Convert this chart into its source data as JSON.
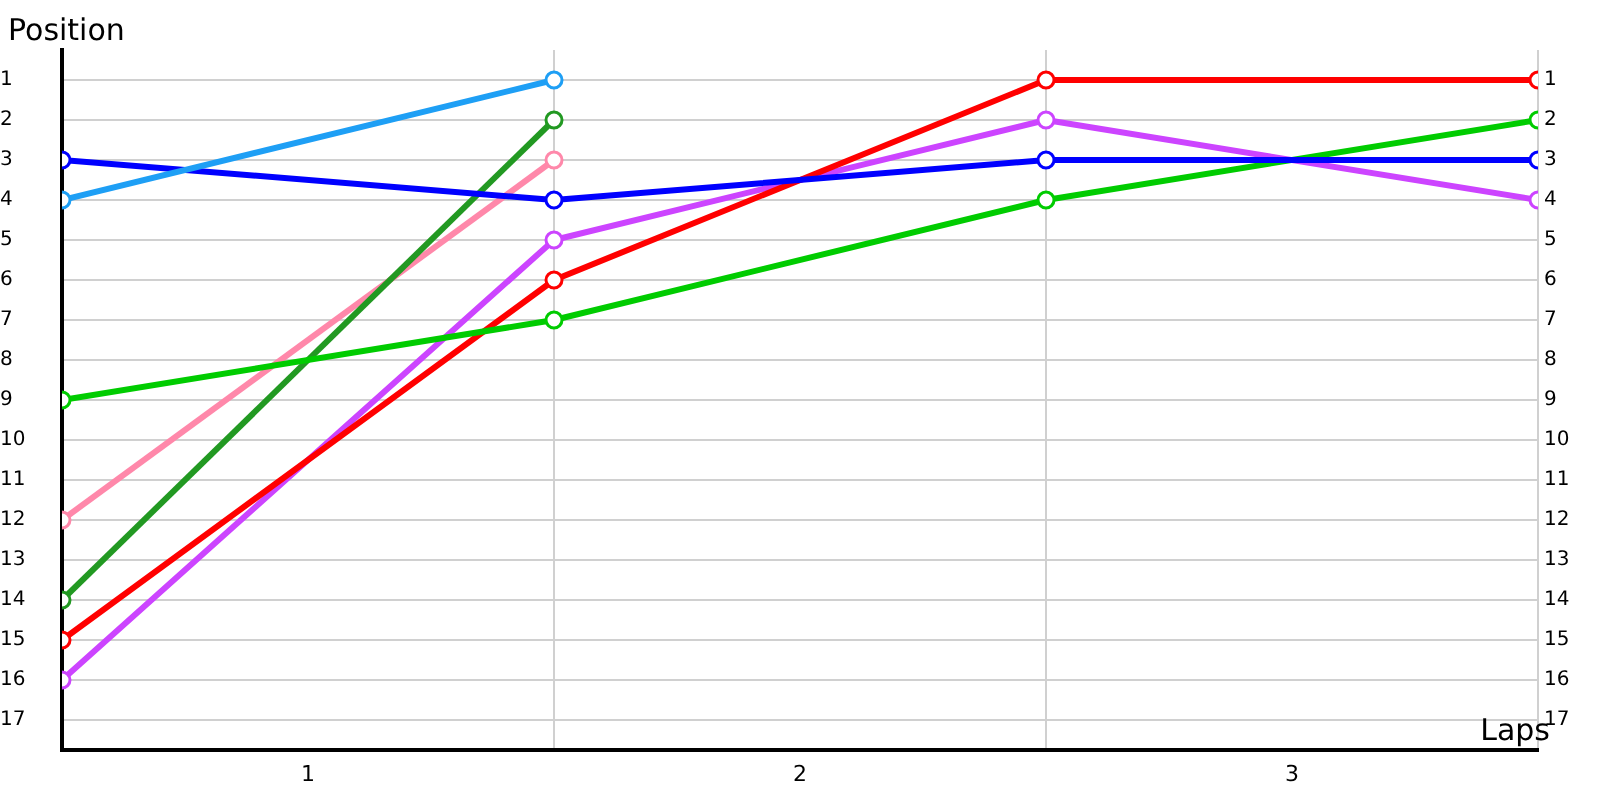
{
  "chart_data": {
    "type": "line",
    "xlabel": "Laps",
    "ylabel": "Position",
    "x": [
      0,
      1,
      2,
      3
    ],
    "xlim": [
      0,
      3
    ],
    "xticks": [
      {
        "value": 0,
        "label": null
      },
      {
        "value": 0.5,
        "label": "1"
      },
      {
        "value": 1,
        "label": null
      },
      {
        "value": 1.5,
        "label": "2"
      },
      {
        "value": 2,
        "label": null
      },
      {
        "value": 2.5,
        "label": "3"
      },
      {
        "value": 3,
        "label": null
      }
    ],
    "ylim": [
      17.75,
      0.25
    ],
    "yticks": [
      1,
      2,
      3,
      4,
      5,
      6,
      7,
      8,
      9,
      10,
      11,
      12,
      13,
      14,
      15,
      16,
      17
    ],
    "y2lim": [
      17.75,
      0.25
    ],
    "y2ticks": [
      1,
      2,
      3,
      4,
      5,
      6,
      7,
      8,
      9,
      10,
      11,
      12,
      13,
      14,
      15,
      16,
      17
    ],
    "grid": true,
    "legend": false,
    "marker": "circle",
    "line_style": "solid",
    "series": [
      {
        "color": "#1e9ff5",
        "values": [
          4,
          1,
          null,
          null
        ]
      },
      {
        "color": "#0000ff",
        "values": [
          3,
          4,
          3,
          3
        ]
      },
      {
        "color": "#00cc00",
        "values": [
          9,
          7,
          4,
          2
        ]
      },
      {
        "color": "#229922",
        "values": [
          14,
          2,
          null,
          null
        ]
      },
      {
        "color": "#ff88aa",
        "values": [
          12,
          3,
          null,
          null
        ]
      },
      {
        "color": "#ff0000",
        "values": [
          15,
          6,
          1,
          1
        ]
      },
      {
        "color": "#cc44ff",
        "values": [
          16,
          5,
          2,
          4
        ]
      }
    ]
  }
}
